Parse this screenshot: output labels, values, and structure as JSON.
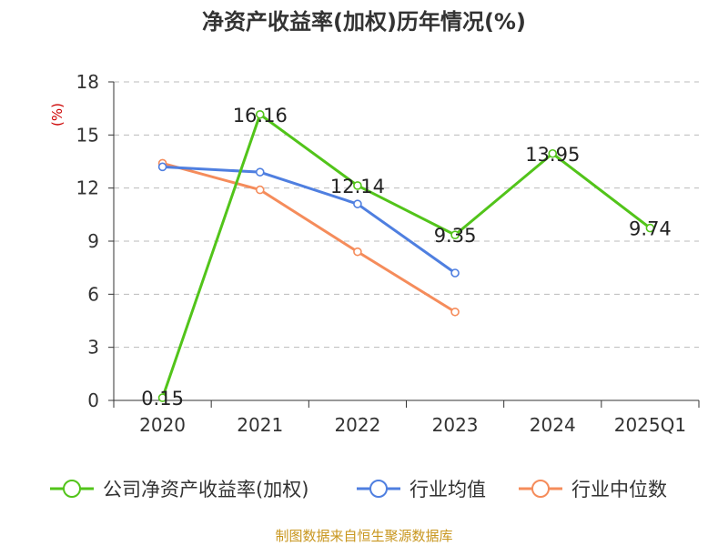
{
  "chart_data": {
    "type": "line",
    "title": "净资产收益率(加权)历年情况(%)",
    "ylabel": "(%)",
    "xlabel": "",
    "categories": [
      "2020",
      "2021",
      "2022",
      "2023",
      "2024",
      "2025Q1"
    ],
    "ylim": [
      0,
      18
    ],
    "yticks": [
      0,
      3,
      6,
      9,
      12,
      15,
      18
    ],
    "grid": true,
    "legend_position": "bottom",
    "series": [
      {
        "name": "公司净资产收益率(加权)",
        "color": "#52c41a",
        "values": [
          0.15,
          16.16,
          12.14,
          9.35,
          13.95,
          9.74
        ],
        "labels": [
          "0.15",
          "16.16",
          "12.14",
          "9.35",
          "13.95",
          "9.74"
        ]
      },
      {
        "name": "行业均值",
        "color": "#4f7fe0",
        "values": [
          13.2,
          12.9,
          11.1,
          7.2,
          null,
          null
        ]
      },
      {
        "name": "行业中位数",
        "color": "#f58c5b",
        "values": [
          13.4,
          11.9,
          8.4,
          5.0,
          null,
          null
        ]
      }
    ],
    "source": "制图数据来自恒生聚源数据库"
  }
}
